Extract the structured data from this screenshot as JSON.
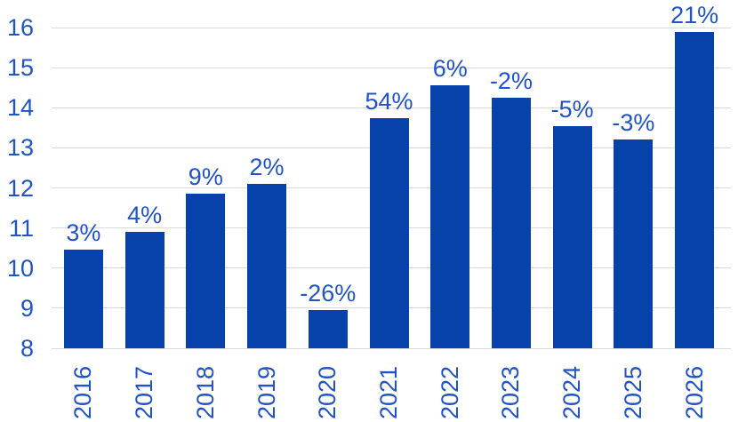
{
  "chart_data": {
    "type": "bar",
    "title": "",
    "xlabel": "",
    "ylabel": "",
    "categories": [
      "2016",
      "2017",
      "2018",
      "2019",
      "2020",
      "2021",
      "2022",
      "2023",
      "2024",
      "2025",
      "2026"
    ],
    "values": [
      10.45,
      10.9,
      11.85,
      12.1,
      8.95,
      13.75,
      14.55,
      14.25,
      13.55,
      13.2,
      15.9
    ],
    "bar_labels": [
      "3%",
      "4%",
      "9%",
      "2%",
      "-26%",
      "54%",
      "6%",
      "-2%",
      "-5%",
      "-3%",
      "21%"
    ],
    "ylim": [
      8,
      16
    ],
    "yticks": [
      8,
      9,
      10,
      11,
      12,
      13,
      14,
      15,
      16
    ],
    "grid": true,
    "legend_position": "none",
    "colors": {
      "bar": "#0642a9",
      "text": "#2053c5",
      "gridline": "#d9d9d9",
      "background": "#ffffff"
    }
  }
}
